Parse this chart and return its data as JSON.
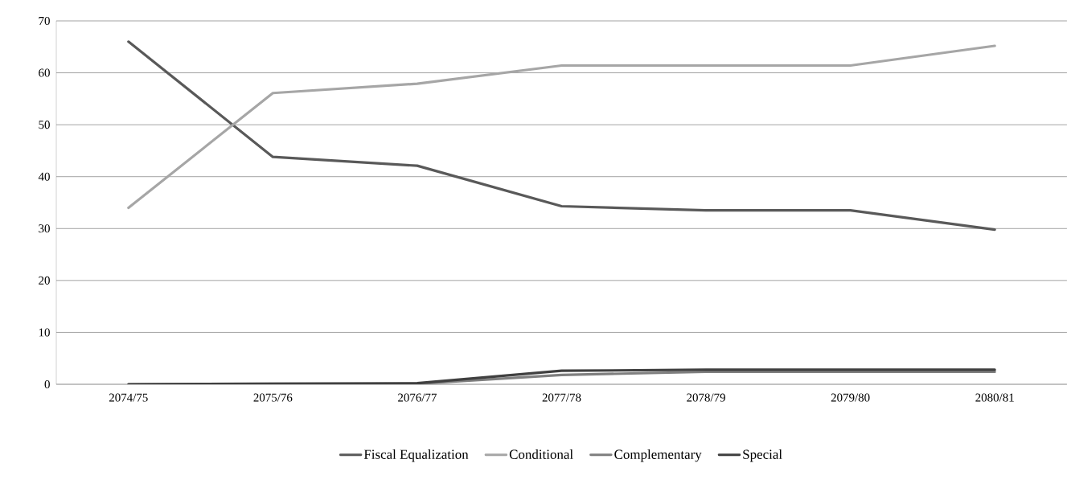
{
  "chart_data": {
    "type": "line",
    "categories": [
      "2074/75",
      "2075/76",
      "2076/77",
      "2077/78",
      "2078/79",
      "2079/80",
      "2080/81"
    ],
    "series": [
      {
        "name": "Fiscal Equalization",
        "color": "#595959",
        "values": [
          66,
          43.8,
          42.1,
          34.3,
          33.5,
          33.5,
          29.8
        ]
      },
      {
        "name": "Conditional",
        "color": "#a6a6a6",
        "values": [
          34,
          56.1,
          57.9,
          61.4,
          61.4,
          61.4,
          65.2
        ]
      },
      {
        "name": "Complementary",
        "color": "#7f7f7f",
        "values": [
          0,
          0.1,
          0.1,
          1.8,
          2.4,
          2.4,
          2.4
        ]
      },
      {
        "name": "Special",
        "color": "#404040",
        "values": [
          0,
          0.1,
          0.2,
          2.6,
          2.8,
          2.8,
          2.8
        ]
      }
    ],
    "ylim": [
      0,
      70
    ],
    "yticks": [
      0,
      10,
      20,
      30,
      40,
      50,
      60,
      70
    ],
    "grid": "y",
    "legend": "bottom",
    "marker": "none",
    "line_style": "solid"
  }
}
